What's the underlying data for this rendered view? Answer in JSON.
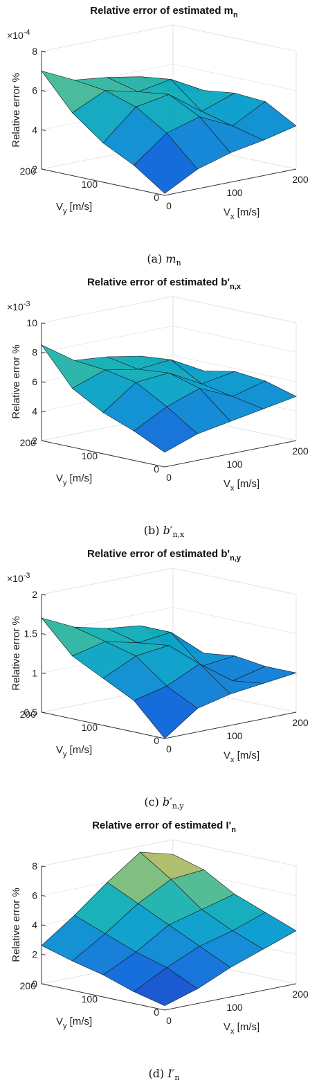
{
  "chart_data": [
    {
      "type": "surface3d",
      "title_main": "Relative error of estimated m",
      "title_sub": "n",
      "title_sup": "",
      "zlabel": "Relative error %",
      "xlabel": "V",
      "xlabel_sub": "x",
      "xlabel_unit": " [m/s]",
      "ylabel": "V",
      "ylabel_sub": "y",
      "ylabel_unit": " [m/s]",
      "exponent_base": "×10",
      "exponent_power": "-4",
      "zticks": [
        "8",
        "6",
        "4",
        "2"
      ],
      "zlim": [
        2,
        8
      ],
      "xticks": [
        "0",
        "100",
        "200"
      ],
      "yticks": [
        "200",
        "100",
        "0"
      ],
      "xlim": [
        0,
        200
      ],
      "ylim": [
        0,
        200
      ],
      "caption_prefix": "(a) ",
      "caption_symbol": "m",
      "caption_sub": "n",
      "caption_prime": "",
      "x": [
        0,
        50,
        100,
        150,
        200
      ],
      "y": [
        0,
        50,
        100,
        150,
        200
      ],
      "z": [
        [
          2.1,
          3.0,
          3.5,
          3.8,
          4.2
        ],
        [
          3.2,
          4.5,
          5.0,
          4.2,
          5.1
        ],
        [
          4.0,
          5.5,
          5.8,
          4.6,
          5.2
        ],
        [
          5.2,
          6.0,
          5.6,
          5.9,
          5.0
        ],
        [
          7.0,
          6.2,
          6.0,
          5.7,
          4.6
        ]
      ]
    },
    {
      "type": "surface3d",
      "title_main": "Relative error of estimated b'",
      "title_sub": "n,x",
      "title_sup": "",
      "zlabel": "Relative error %",
      "xlabel": "V",
      "xlabel_sub": "x",
      "xlabel_unit": " [m/s]",
      "ylabel": "V",
      "ylabel_sub": "y",
      "ylabel_unit": " [m/s]",
      "exponent_base": "×10",
      "exponent_power": "-3",
      "zticks": [
        "10",
        "8",
        "6",
        "4",
        "2"
      ],
      "zlim": [
        2,
        10
      ],
      "xticks": [
        "0",
        "100",
        "200"
      ],
      "yticks": [
        "200",
        "100",
        "0"
      ],
      "xlim": [
        0,
        200
      ],
      "ylim": [
        0,
        200
      ],
      "caption_prefix": "(b) ",
      "caption_symbol": "b",
      "caption_sub": "n,x",
      "caption_prime": "′",
      "x": [
        0,
        50,
        100,
        150,
        200
      ],
      "y": [
        0,
        50,
        100,
        150,
        200
      ],
      "z": [
        [
          3.0,
          3.8,
          4.2,
          4.6,
          5.0
        ],
        [
          4.0,
          5.2,
          6.0,
          5.0,
          5.6
        ],
        [
          4.8,
          6.4,
          6.6,
          5.4,
          5.8
        ],
        [
          6.0,
          6.8,
          6.4,
          6.6,
          5.4
        ],
        [
          8.5,
          7.0,
          6.8,
          6.4,
          5.0
        ]
      ]
    },
    {
      "type": "surface3d",
      "title_main": "Relative error of estimated b'",
      "title_sub": "n,y",
      "title_sup": "",
      "zlabel": "Relative error %",
      "xlabel": "V",
      "xlabel_sub": "x",
      "xlabel_unit": " [m/s]",
      "ylabel": "V",
      "ylabel_sub": "y",
      "ylabel_unit": " [m/s]",
      "exponent_base": "×10",
      "exponent_power": "-3",
      "zticks": [
        "2",
        "1.5",
        "1",
        "0.5"
      ],
      "zlim": [
        0.5,
        2
      ],
      "xticks": [
        "0",
        "100",
        "200"
      ],
      "yticks": [
        "200",
        "100",
        "0"
      ],
      "xlim": [
        0,
        200
      ],
      "ylim": [
        0,
        200
      ],
      "caption_prefix": "(c) ",
      "caption_symbol": "b",
      "caption_sub": "n,y",
      "caption_prime": "′",
      "x": [
        0,
        50,
        100,
        150,
        200
      ],
      "y": [
        0,
        50,
        100,
        150,
        200
      ],
      "z": [
        [
          0.5,
          0.8,
          0.9,
          0.95,
          1.0
        ],
        [
          0.9,
          1.0,
          1.2,
          0.9,
          1.0
        ],
        [
          1.1,
          1.3,
          1.35,
          1.0,
          1.05
        ],
        [
          1.3,
          1.4,
          1.3,
          1.35,
          1.0
        ],
        [
          1.7,
          1.5,
          1.4,
          1.35,
          0.95
        ]
      ]
    },
    {
      "type": "surface3d",
      "title_main": "Relative error of estimated I'",
      "title_sub": "n",
      "title_sup": "",
      "zlabel": "Relative error %",
      "xlabel": "V",
      "xlabel_sub": "x",
      "xlabel_unit": " [m/s]",
      "ylabel": "V",
      "ylabel_sub": "y",
      "ylabel_unit": " [m/s]",
      "exponent_base": "",
      "exponent_power": "",
      "zticks": [
        "8",
        "6",
        "4",
        "2",
        "0"
      ],
      "zlim": [
        0,
        8
      ],
      "xticks": [
        "0",
        "100",
        "200"
      ],
      "yticks": [
        "200",
        "100",
        "0"
      ],
      "xlim": [
        0,
        200
      ],
      "ylim": [
        0,
        200
      ],
      "caption_prefix": "(d) ",
      "caption_symbol": "I",
      "caption_sub": "n",
      "caption_prime": "′",
      "x": [
        0,
        50,
        100,
        150,
        200
      ],
      "y": [
        0,
        50,
        100,
        150,
        200
      ],
      "z": [
        [
          0.3,
          1.0,
          2.0,
          2.8,
          3.6
        ],
        [
          0.8,
          2.0,
          3.0,
          3.6,
          4.4
        ],
        [
          1.5,
          2.6,
          4.0,
          4.6,
          5.2
        ],
        [
          2.0,
          3.4,
          5.0,
          6.2,
          6.4
        ],
        [
          2.6,
          4.2,
          6.0,
          7.6,
          7.0
        ]
      ]
    }
  ]
}
